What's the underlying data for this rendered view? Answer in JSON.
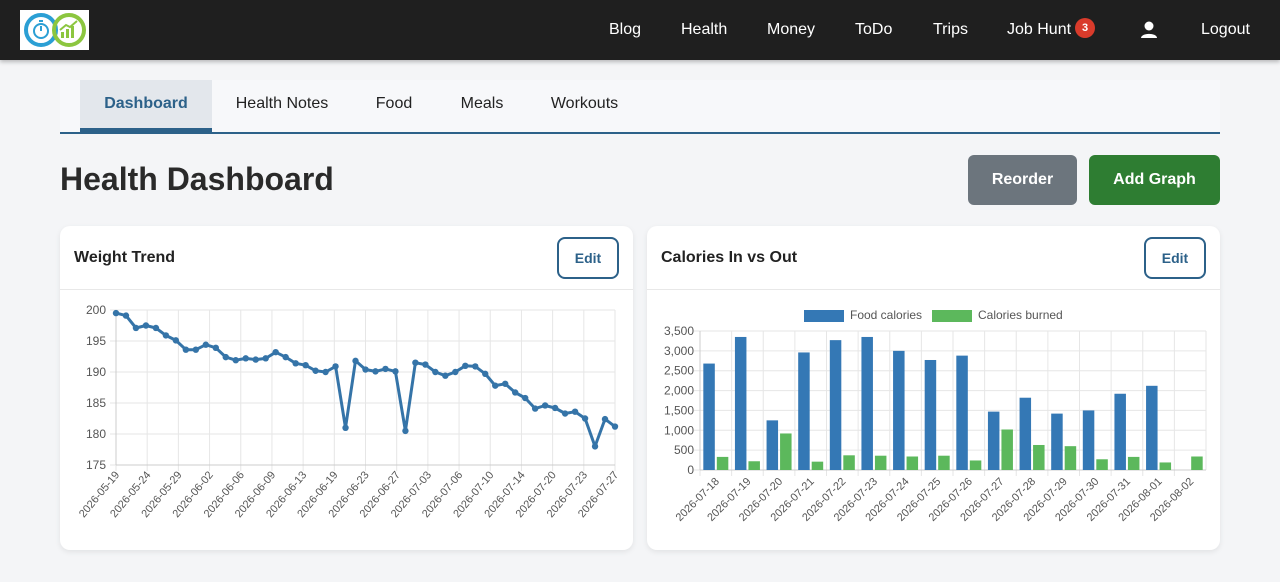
{
  "nav": {
    "items": [
      {
        "label": "Blog"
      },
      {
        "label": "Health"
      },
      {
        "label": "Money"
      },
      {
        "label": "ToDo"
      },
      {
        "label": "Trips"
      },
      {
        "label": "Job Hunt",
        "badge": "3"
      }
    ],
    "logout": "Logout",
    "badge_color": "#d93b2b"
  },
  "tabs": [
    {
      "label": "Dashboard",
      "active": true
    },
    {
      "label": "Health Notes"
    },
    {
      "label": "Food"
    },
    {
      "label": "Meals"
    },
    {
      "label": "Workouts"
    }
  ],
  "page": {
    "title": "Health Dashboard",
    "reorder_label": "Reorder",
    "add_graph_label": "Add Graph"
  },
  "cards": [
    {
      "title": "Weight Trend",
      "edit_label": "Edit"
    },
    {
      "title": "Calories In vs Out",
      "edit_label": "Edit"
    }
  ],
  "colors": {
    "accent": "#2c6189",
    "line": "#3574a8",
    "food": "#3478b5",
    "burned": "#5cb85c",
    "add_button": "#2e7d32",
    "reorder_button": "#6c757d"
  },
  "chart_data": [
    {
      "type": "line",
      "title": "",
      "x_start": "2026-05-19",
      "x_end": "2026-07-30",
      "x_tick_labels": [
        "2026-05-19",
        "2026-05-24",
        "2026-05-29",
        "2026-06-02",
        "2026-06-06",
        "2026-06-09",
        "2026-06-13",
        "2026-06-19",
        "2026-06-23",
        "2026-06-27",
        "2026-07-03",
        "2026-07-06",
        "2026-07-10",
        "2026-07-14",
        "2026-07-20",
        "2026-07-23",
        "2026-07-27"
      ],
      "y_ticks": [
        175,
        180,
        185,
        190,
        195,
        200
      ],
      "ylim": [
        175,
        200
      ],
      "grid": true,
      "series": [
        {
          "values": [
            199.5,
            199.1,
            197.1,
            197.5,
            197.1,
            195.9,
            195.1,
            193.6,
            193.6,
            194.4,
            193.9,
            192.4,
            191.9,
            192.2,
            192.0,
            192.2,
            193.2,
            192.4,
            191.4,
            191.1,
            190.2,
            190.0,
            190.9,
            181.0,
            191.8,
            190.4,
            190.1,
            190.5,
            190.1,
            180.5,
            191.5,
            191.2,
            190.0,
            189.4,
            190.0,
            191.0,
            190.9,
            189.7,
            187.8,
            188.1,
            186.7,
            185.8,
            184.1,
            184.6,
            184.2,
            183.3,
            183.6,
            182.5,
            178.0,
            182.4,
            181.2
          ]
        }
      ]
    },
    {
      "type": "bar",
      "title": "",
      "categories": [
        "2026-07-18",
        "2026-07-19",
        "2026-07-20",
        "2026-07-21",
        "2026-07-22",
        "2026-07-23",
        "2026-07-24",
        "2026-07-25",
        "2026-07-26",
        "2026-07-27",
        "2026-07-28",
        "2026-07-29",
        "2026-07-30",
        "2026-07-31",
        "2026-08-01",
        "2026-08-02"
      ],
      "y_ticks": [
        0,
        500,
        1000,
        1500,
        2000,
        2500,
        3000,
        3500
      ],
      "ylim": [
        0,
        3500
      ],
      "grid": true,
      "legend_position": "top",
      "series": [
        {
          "name": "Food calories",
          "values": [
            2680,
            3350,
            1250,
            2960,
            3270,
            3350,
            3000,
            2770,
            2880,
            1470,
            1820,
            1420,
            1500,
            1920,
            2120,
            0
          ]
        },
        {
          "name": "Calories burned",
          "values": [
            330,
            220,
            920,
            210,
            370,
            360,
            340,
            360,
            240,
            1020,
            630,
            600,
            270,
            330,
            190,
            340
          ]
        }
      ]
    }
  ]
}
